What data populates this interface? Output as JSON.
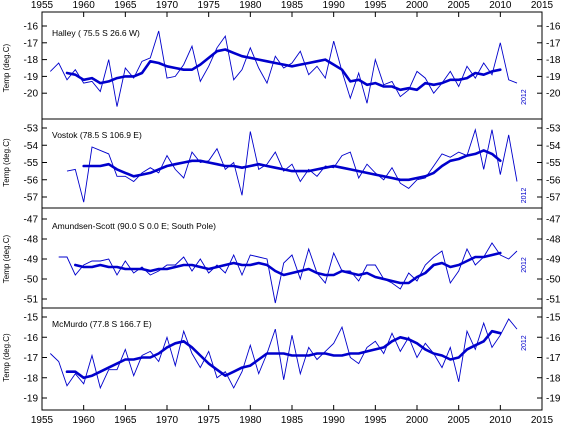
{
  "chart_data": {
    "type": "line",
    "x_axis": {
      "min": 1955,
      "max": 2015,
      "ticks": [
        1955,
        1960,
        1965,
        1970,
        1975,
        1980,
        1985,
        1990,
        1995,
        2000,
        2005,
        2010,
        2015
      ]
    },
    "colors": {
      "annual": "#0000cc",
      "smoothed": "#0000cc",
      "axis": "#000000",
      "end_label": "#0000cc"
    },
    "panels": [
      {
        "title": "Halley ( 75.5 S 26.6 W)",
        "ylabel": "Temp (deg.C)",
        "ylim": [
          -21,
          -16
        ],
        "yticks": [
          -16,
          -17,
          -18,
          -19,
          -20
        ],
        "end_label": "2012",
        "annual": {
          "x": [
            1956,
            1957,
            1958,
            1959,
            1960,
            1961,
            1962,
            1963,
            1964,
            1965,
            1966,
            1967,
            1968,
            1969,
            1970,
            1971,
            1972,
            1973,
            1974,
            1975,
            1976,
            1977,
            1978,
            1979,
            1980,
            1981,
            1982,
            1983,
            1984,
            1985,
            1986,
            1987,
            1988,
            1989,
            1990,
            1991,
            1992,
            1993,
            1994,
            1995,
            1996,
            1997,
            1998,
            1999,
            2000,
            2001,
            2002,
            2003,
            2004,
            2005,
            2006,
            2007,
            2008,
            2009,
            2010,
            2011,
            2012
          ],
          "y": [
            -18.7,
            -18.2,
            -19.2,
            -18.6,
            -19.4,
            -19.3,
            -19.9,
            -18.0,
            -20.8,
            -18.5,
            -19.1,
            -18.1,
            -17.9,
            -16.3,
            -19.1,
            -19.0,
            -18.3,
            -17.2,
            -19.3,
            -18.4,
            -17.3,
            -16.6,
            -19.2,
            -18.6,
            -17.3,
            -18.5,
            -19.4,
            -17.8,
            -18.5,
            -18.2,
            -17.5,
            -18.9,
            -18.4,
            -19.1,
            -16.9,
            -18.7,
            -20.3,
            -18.8,
            -20.6,
            -18.0,
            -19.5,
            -19.3,
            -20.2,
            -19.8,
            -18.7,
            -19.1,
            -20.0,
            -19.4,
            -18.7,
            -19.6,
            -18.4,
            -19.1,
            -18.2,
            -18.9,
            -17.0,
            -19.2,
            -19.4
          ]
        },
        "smoothed": {
          "x": [
            1958,
            1959,
            1960,
            1961,
            1962,
            1963,
            1964,
            1965,
            1966,
            1967,
            1968,
            1969,
            1970,
            1971,
            1972,
            1973,
            1974,
            1975,
            1976,
            1977,
            1978,
            1979,
            1980,
            1981,
            1982,
            1983,
            1984,
            1985,
            1986,
            1987,
            1988,
            1989,
            1990,
            1991,
            1992,
            1993,
            1994,
            1995,
            1996,
            1997,
            1998,
            1999,
            2000,
            2001,
            2002,
            2003,
            2004,
            2005,
            2006,
            2007,
            2008,
            2009,
            2010
          ],
          "y": [
            -18.8,
            -18.9,
            -19.2,
            -19.1,
            -19.4,
            -19.3,
            -19.1,
            -19.0,
            -19.0,
            -18.8,
            -18.1,
            -18.2,
            -18.4,
            -18.5,
            -18.6,
            -18.6,
            -18.3,
            -17.9,
            -17.5,
            -17.4,
            -17.6,
            -17.8,
            -17.9,
            -18.0,
            -18.1,
            -18.2,
            -18.3,
            -18.4,
            -18.3,
            -18.2,
            -18.1,
            -18.0,
            -18.3,
            -18.6,
            -19.3,
            -19.2,
            -19.5,
            -19.4,
            -19.6,
            -19.6,
            -19.8,
            -19.7,
            -19.8,
            -19.4,
            -19.5,
            -19.4,
            -19.2,
            -19.2,
            -19.1,
            -18.8,
            -18.9,
            -18.7,
            -18.6
          ]
        }
      },
      {
        "title": "Vostok (78.5 S 106.9 E)",
        "ylabel": "Temp (deg.C)",
        "ylim": [
          -57,
          -53
        ],
        "yticks": [
          -53,
          -54,
          -55,
          -56,
          -57
        ],
        "end_label": "2012",
        "annual": {
          "x": [
            1958,
            1959,
            1960,
            1961,
            1962,
            1963,
            1964,
            1965,
            1966,
            1967,
            1968,
            1969,
            1970,
            1971,
            1972,
            1973,
            1974,
            1975,
            1976,
            1977,
            1978,
            1979,
            1980,
            1981,
            1982,
            1983,
            1984,
            1985,
            1986,
            1987,
            1988,
            1989,
            1990,
            1991,
            1992,
            1993,
            1994,
            1995,
            1996,
            1997,
            1998,
            1999,
            2000,
            2001,
            2002,
            2003,
            2004,
            2005,
            2006,
            2007,
            2008,
            2009,
            2010,
            2011,
            2012
          ],
          "y": [
            -55.5,
            -55.4,
            -57.3,
            -54.1,
            -54.3,
            -54.5,
            -55.8,
            -55.8,
            -56.1,
            -55.6,
            -55.3,
            -55.6,
            -54.6,
            -55.4,
            -55.9,
            -54.4,
            -55.0,
            -54.9,
            -54.2,
            -55.4,
            -55.0,
            -56.9,
            -53.2,
            -55.4,
            -55.1,
            -54.4,
            -55.5,
            -55.1,
            -56.1,
            -55.4,
            -55.8,
            -55.2,
            -55.3,
            -54.6,
            -54.4,
            -55.9,
            -55.1,
            -55.6,
            -56.0,
            -55.3,
            -56.2,
            -56.5,
            -56.0,
            -55.9,
            -55.2,
            -54.5,
            -54.7,
            -54.4,
            -54.6,
            -53.1,
            -55.4,
            -53.1,
            -55.7,
            -53.4,
            -56.1
          ]
        },
        "smoothed": {
          "x": [
            1960,
            1961,
            1962,
            1963,
            1964,
            1965,
            1966,
            1967,
            1968,
            1969,
            1970,
            1971,
            1972,
            1973,
            1974,
            1975,
            1976,
            1977,
            1978,
            1979,
            1980,
            1981,
            1982,
            1983,
            1984,
            1985,
            1986,
            1987,
            1988,
            1989,
            1990,
            1991,
            1992,
            1993,
            1994,
            1995,
            1996,
            1997,
            1998,
            1999,
            2000,
            2001,
            2002,
            2003,
            2004,
            2005,
            2006,
            2007,
            2008,
            2009,
            2010
          ],
          "y": [
            -55.2,
            -55.2,
            -55.2,
            -55.1,
            -55.4,
            -55.6,
            -55.8,
            -55.7,
            -55.6,
            -55.4,
            -55.2,
            -55.1,
            -55.0,
            -54.9,
            -54.9,
            -55.0,
            -55.1,
            -55.2,
            -55.2,
            -55.3,
            -55.2,
            -55.1,
            -55.2,
            -55.3,
            -55.4,
            -55.5,
            -55.5,
            -55.5,
            -55.4,
            -55.3,
            -55.2,
            -55.3,
            -55.4,
            -55.5,
            -55.6,
            -55.7,
            -55.8,
            -55.9,
            -56.0,
            -56.0,
            -55.9,
            -55.8,
            -55.6,
            -55.2,
            -54.9,
            -54.8,
            -54.6,
            -54.5,
            -54.3,
            -54.5,
            -54.9
          ]
        }
      },
      {
        "title": "Amundsen-Scott (90.0 S 0.0 E; South Pole)",
        "ylabel": "Temp (deg.C)",
        "ylim": [
          -51,
          -47
        ],
        "yticks": [
          -47,
          -48,
          -49,
          -50,
          -51
        ],
        "end_label": "2012",
        "annual": {
          "x": [
            1957,
            1958,
            1959,
            1960,
            1961,
            1962,
            1963,
            1964,
            1965,
            1966,
            1967,
            1968,
            1969,
            1970,
            1971,
            1972,
            1973,
            1974,
            1975,
            1976,
            1977,
            1978,
            1979,
            1980,
            1981,
            1982,
            1983,
            1984,
            1985,
            1986,
            1987,
            1988,
            1989,
            1990,
            1991,
            1992,
            1993,
            1994,
            1995,
            1996,
            1997,
            1998,
            1999,
            2000,
            2001,
            2002,
            2003,
            2004,
            2005,
            2006,
            2007,
            2008,
            2009,
            2010,
            2011,
            2012
          ],
          "y": [
            -48.9,
            -48.9,
            -49.8,
            -49.3,
            -49.1,
            -49.1,
            -49.0,
            -49.8,
            -49.1,
            -49.7,
            -49.4,
            -49.8,
            -49.6,
            -49.3,
            -49.3,
            -48.9,
            -49.6,
            -49.0,
            -49.7,
            -49.3,
            -49.7,
            -48.8,
            -49.8,
            -48.8,
            -48.9,
            -49.0,
            -51.2,
            -49.2,
            -48.8,
            -50.0,
            -48.5,
            -49.7,
            -50.2,
            -48.7,
            -49.6,
            -49.6,
            -50.1,
            -49.3,
            -49.3,
            -50.0,
            -50.2,
            -50.5,
            -49.7,
            -50.1,
            -49.3,
            -48.9,
            -48.6,
            -50.2,
            -49.6,
            -48.5,
            -49.3,
            -48.9,
            -48.2,
            -48.8,
            -49.0,
            -48.6
          ]
        },
        "smoothed": {
          "x": [
            1959,
            1960,
            1961,
            1962,
            1963,
            1964,
            1965,
            1966,
            1967,
            1968,
            1969,
            1970,
            1971,
            1972,
            1973,
            1974,
            1975,
            1976,
            1977,
            1978,
            1979,
            1980,
            1981,
            1982,
            1983,
            1984,
            1985,
            1986,
            1987,
            1988,
            1989,
            1990,
            1991,
            1992,
            1993,
            1994,
            1995,
            1996,
            1997,
            1998,
            1999,
            2000,
            2001,
            2002,
            2003,
            2004,
            2005,
            2006,
            2007,
            2008,
            2009,
            2010
          ],
          "y": [
            -49.3,
            -49.4,
            -49.4,
            -49.3,
            -49.4,
            -49.4,
            -49.5,
            -49.5,
            -49.5,
            -49.6,
            -49.5,
            -49.5,
            -49.4,
            -49.3,
            -49.3,
            -49.4,
            -49.5,
            -49.4,
            -49.3,
            -49.2,
            -49.3,
            -49.3,
            -49.2,
            -49.3,
            -49.6,
            -49.8,
            -49.7,
            -49.6,
            -49.5,
            -49.7,
            -49.8,
            -49.8,
            -49.6,
            -49.7,
            -49.8,
            -49.7,
            -49.9,
            -50.0,
            -50.1,
            -50.2,
            -50.2,
            -49.9,
            -49.7,
            -49.3,
            -49.2,
            -49.4,
            -49.3,
            -49.1,
            -48.9,
            -48.9,
            -48.8,
            -48.7
          ]
        }
      },
      {
        "title": "McMurdo (77.8 S 166.7 E)",
        "ylabel": "Temp (deg.C)",
        "ylim": [
          -19,
          -15
        ],
        "yticks": [
          -15,
          -16,
          -17,
          -18,
          -19
        ],
        "end_label": "2012",
        "annual": {
          "x": [
            1956,
            1957,
            1958,
            1959,
            1960,
            1961,
            1962,
            1963,
            1964,
            1965,
            1966,
            1967,
            1968,
            1969,
            1970,
            1971,
            1972,
            1973,
            1974,
            1975,
            1976,
            1977,
            1978,
            1979,
            1980,
            1981,
            1982,
            1983,
            1984,
            1985,
            1986,
            1987,
            1988,
            1989,
            1990,
            1991,
            1992,
            1993,
            1994,
            1995,
            1996,
            1997,
            1998,
            1999,
            2000,
            2001,
            2002,
            2003,
            2004,
            2005,
            2006,
            2007,
            2008,
            2009,
            2010,
            2011,
            2012
          ],
          "y": [
            -16.8,
            -17.2,
            -18.4,
            -17.8,
            -18.3,
            -16.9,
            -18.5,
            -17.6,
            -17.6,
            -16.6,
            -17.9,
            -16.9,
            -16.7,
            -17.2,
            -16.0,
            -17.4,
            -15.7,
            -16.8,
            -17.5,
            -16.7,
            -18.0,
            -17.7,
            -18.5,
            -17.7,
            -16.4,
            -17.8,
            -16.8,
            -15.6,
            -18.1,
            -15.9,
            -17.8,
            -16.5,
            -17.1,
            -16.7,
            -16.3,
            -15.5,
            -17.0,
            -17.3,
            -16.5,
            -16.2,
            -16.8,
            -15.8,
            -16.7,
            -16.0,
            -17.0,
            -16.3,
            -16.8,
            -17.5,
            -16.5,
            -18.2,
            -15.7,
            -16.6,
            -15.3,
            -16.5,
            -15.9,
            -15.1,
            -15.6
          ]
        },
        "smoothed": {
          "x": [
            1958,
            1959,
            1960,
            1961,
            1962,
            1963,
            1964,
            1965,
            1966,
            1967,
            1968,
            1969,
            1970,
            1971,
            1972,
            1973,
            1974,
            1975,
            1976,
            1977,
            1978,
            1979,
            1980,
            1981,
            1982,
            1983,
            1984,
            1985,
            1986,
            1987,
            1988,
            1989,
            1990,
            1991,
            1992,
            1993,
            1994,
            1995,
            1996,
            1997,
            1998,
            1999,
            2000,
            2001,
            2002,
            2003,
            2004,
            2005,
            2006,
            2007,
            2008,
            2009,
            2010
          ],
          "y": [
            -17.7,
            -17.7,
            -18.0,
            -17.9,
            -17.7,
            -17.5,
            -17.3,
            -17.1,
            -17.1,
            -17.0,
            -17.0,
            -16.8,
            -16.5,
            -16.3,
            -16.2,
            -16.5,
            -16.9,
            -17.3,
            -17.6,
            -17.9,
            -17.7,
            -17.5,
            -17.4,
            -17.1,
            -16.8,
            -16.8,
            -16.8,
            -16.9,
            -16.9,
            -16.9,
            -16.8,
            -16.8,
            -16.9,
            -16.9,
            -16.8,
            -16.8,
            -16.7,
            -16.6,
            -16.5,
            -16.2,
            -16.0,
            -16.1,
            -16.3,
            -16.6,
            -16.8,
            -16.9,
            -17.1,
            -17.0,
            -16.6,
            -16.4,
            -16.2,
            -15.7,
            -15.8
          ]
        }
      }
    ]
  }
}
